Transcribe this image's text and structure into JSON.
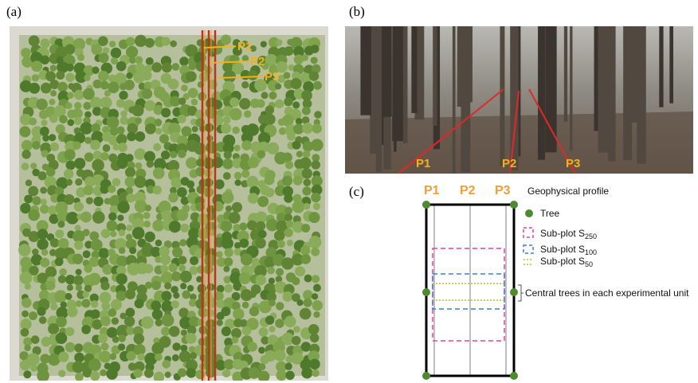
{
  "panel_a": {
    "label": "(a)",
    "profiles": [
      "P1",
      "P2",
      "P3"
    ]
  },
  "panel_b": {
    "label": "(b)",
    "profiles": [
      "P1",
      "P2",
      "P3"
    ]
  },
  "panel_c": {
    "label": "(c)",
    "profiles": [
      "P1",
      "P2",
      "P3"
    ],
    "legend": {
      "profile": "Geophysical profile",
      "tree": "Tree",
      "subplots": [
        {
          "text": "Sub-plot S",
          "sub": "250"
        },
        {
          "text": "Sub-plot S",
          "sub": "100"
        },
        {
          "text": "Sub-plot S",
          "sub": "50"
        }
      ],
      "central": "Central trees in each experimental unit"
    }
  }
}
